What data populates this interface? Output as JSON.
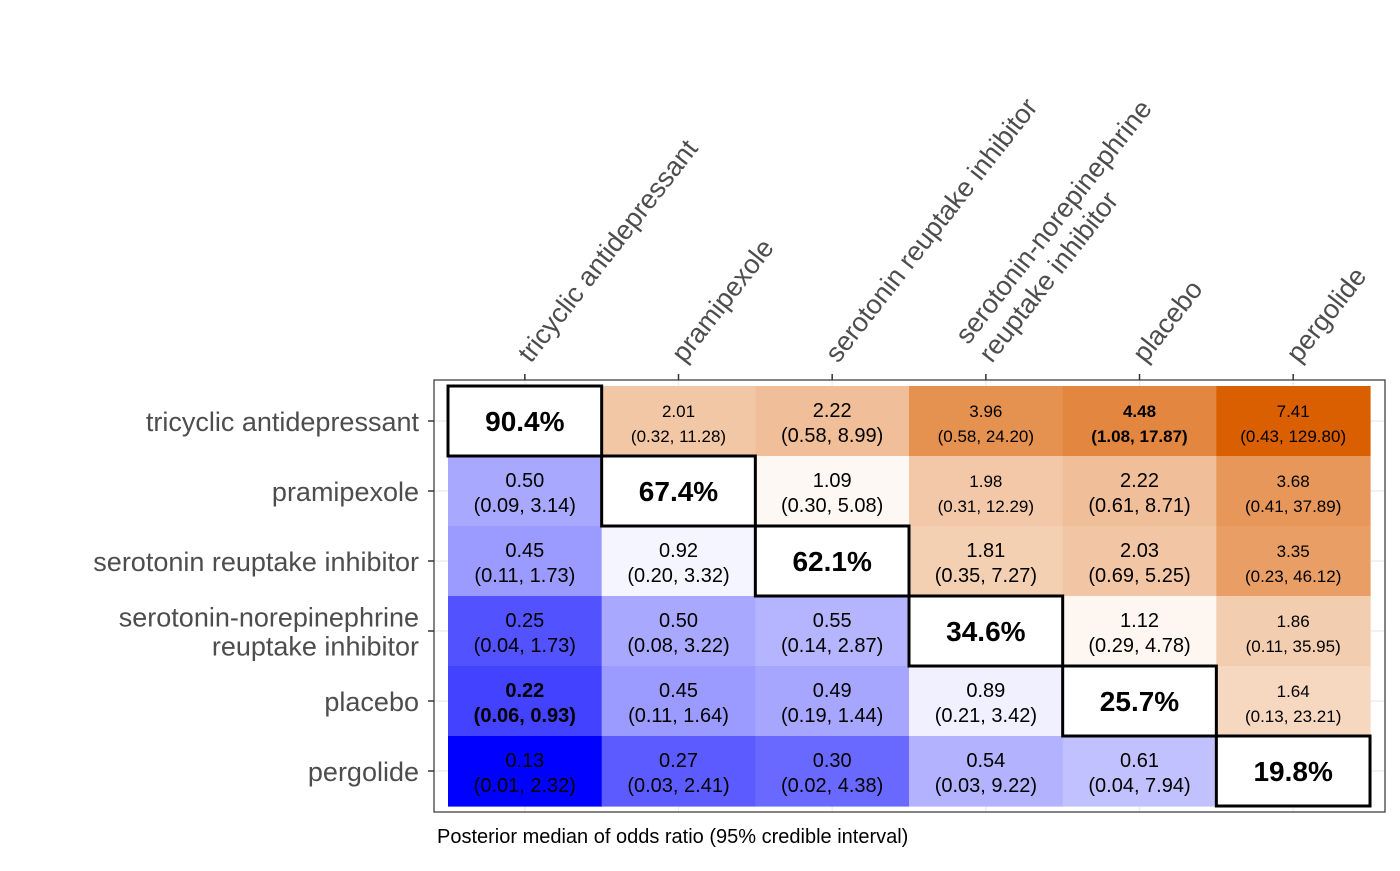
{
  "chart_data": {
    "type": "heatmap",
    "title": "",
    "caption": "Posterior median of odds ratio (95% credible interval)",
    "labels": [
      "tricyclic antidepressant",
      "pramipexole",
      "serotonin reuptake inhibitor",
      "serotonin-norepinephrine reuptake inhibitor",
      "placebo",
      "pergolide"
    ],
    "row_labels": [
      [
        "tricyclic antidepressant"
      ],
      [
        "pramipexole"
      ],
      [
        "serotonin reuptake inhibitor"
      ],
      [
        "serotonin-norepinephrine",
        "reuptake inhibitor"
      ],
      [
        "placebo"
      ],
      [
        "pergolide"
      ]
    ],
    "column_labels": [
      [
        "tricyclic antidepressant"
      ],
      [
        "pramipexole"
      ],
      [
        "serotonin reuptake inhibitor"
      ],
      [
        "serotonin-norepinephrine",
        "reuptake inhibitor"
      ],
      [
        "placebo"
      ],
      [
        "pergolide"
      ]
    ],
    "diagonal": [
      "90.4%",
      "67.4%",
      "62.1%",
      "34.6%",
      "25.7%",
      "19.8%"
    ],
    "cells": [
      [
        null,
        {
          "median": "2.01",
          "ci": "(0.32, 11.28)"
        },
        {
          "median": "2.22",
          "ci": "(0.58, 8.99)"
        },
        {
          "median": "3.96",
          "ci": "(0.58, 24.20)"
        },
        {
          "median": "4.48",
          "ci": "(1.08, 17.87)",
          "bold": true
        },
        {
          "median": "7.41",
          "ci": "(0.43, 129.80)"
        }
      ],
      [
        {
          "median": "0.50",
          "ci": "(0.09, 3.14)"
        },
        null,
        {
          "median": "1.09",
          "ci": "(0.30, 5.08)"
        },
        {
          "median": "1.98",
          "ci": "(0.31, 12.29)"
        },
        {
          "median": "2.22",
          "ci": "(0.61, 8.71)"
        },
        {
          "median": "3.68",
          "ci": "(0.41, 37.89)"
        }
      ],
      [
        {
          "median": "0.45",
          "ci": "(0.11, 1.73)"
        },
        {
          "median": "0.92",
          "ci": "(0.20, 3.32)"
        },
        null,
        {
          "median": "1.81",
          "ci": "(0.35, 7.27)"
        },
        {
          "median": "2.03",
          "ci": "(0.69, 5.25)"
        },
        {
          "median": "3.35",
          "ci": "(0.23, 46.12)"
        }
      ],
      [
        {
          "median": "0.25",
          "ci": "(0.04, 1.73)"
        },
        {
          "median": "0.50",
          "ci": "(0.08, 3.22)"
        },
        {
          "median": "0.55",
          "ci": "(0.14, 2.87)"
        },
        null,
        {
          "median": "1.12",
          "ci": "(0.29, 4.78)"
        },
        {
          "median": "1.86",
          "ci": "(0.11, 35.95)"
        }
      ],
      [
        {
          "median": "0.22",
          "ci": "(0.06, 0.93)",
          "bold": true
        },
        {
          "median": "0.45",
          "ci": "(0.11, 1.64)"
        },
        {
          "median": "0.49",
          "ci": "(0.19, 1.44)"
        },
        {
          "median": "0.89",
          "ci": "(0.21, 3.42)"
        },
        null,
        {
          "median": "1.64",
          "ci": "(0.13, 23.21)"
        }
      ],
      [
        {
          "median": "0.13",
          "ci": "(0.01, 2.32)"
        },
        {
          "median": "0.27",
          "ci": "(0.03, 2.41)"
        },
        {
          "median": "0.30",
          "ci": "(0.02, 4.38)"
        },
        {
          "median": "0.54",
          "ci": "(0.03, 9.22)"
        },
        {
          "median": "0.61",
          "ci": "(0.04, 7.94)"
        },
        null
      ]
    ],
    "color_scale": {
      "low": "#0000ff",
      "mid": "#ffffff",
      "high": "#d95f00",
      "midpoint": 1,
      "scale": "log"
    },
    "grid": true,
    "legend": "none"
  }
}
